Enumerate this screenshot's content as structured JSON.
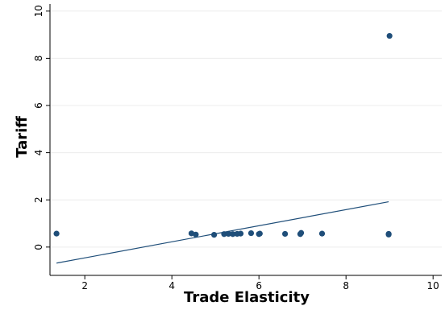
{
  "chart_data": {
    "type": "scatter",
    "xlabel": "Trade Elasticity",
    "ylabel": "Tariff",
    "xlim": [
      1.2,
      10.2
    ],
    "ylim": [
      -1.2,
      10.3
    ],
    "x_ticks": [
      2,
      4,
      6,
      8,
      10
    ],
    "y_ticks": [
      0,
      2,
      4,
      6,
      8,
      10
    ],
    "grid": "horizontal",
    "legend": "none",
    "colors": {
      "points": "#1f4e79",
      "fit_line": "#1f4e79",
      "grid": "#ececec",
      "axis": "#000000"
    },
    "points": [
      [
        1.35,
        0.57
      ],
      [
        4.45,
        0.58
      ],
      [
        4.55,
        0.53
      ],
      [
        4.97,
        0.52
      ],
      [
        5.2,
        0.55
      ],
      [
        5.3,
        0.56
      ],
      [
        5.4,
        0.55
      ],
      [
        5.5,
        0.56
      ],
      [
        5.58,
        0.57
      ],
      [
        5.82,
        0.59
      ],
      [
        6.0,
        0.55
      ],
      [
        6.02,
        0.57
      ],
      [
        6.6,
        0.56
      ],
      [
        6.95,
        0.55
      ],
      [
        6.97,
        0.6
      ],
      [
        7.45,
        0.57
      ],
      [
        8.98,
        0.53
      ],
      [
        8.98,
        0.56
      ],
      [
        9.0,
        8.95
      ]
    ],
    "fit_line": {
      "x": [
        1.35,
        8.98
      ],
      "y": [
        -0.68,
        1.92
      ]
    }
  }
}
